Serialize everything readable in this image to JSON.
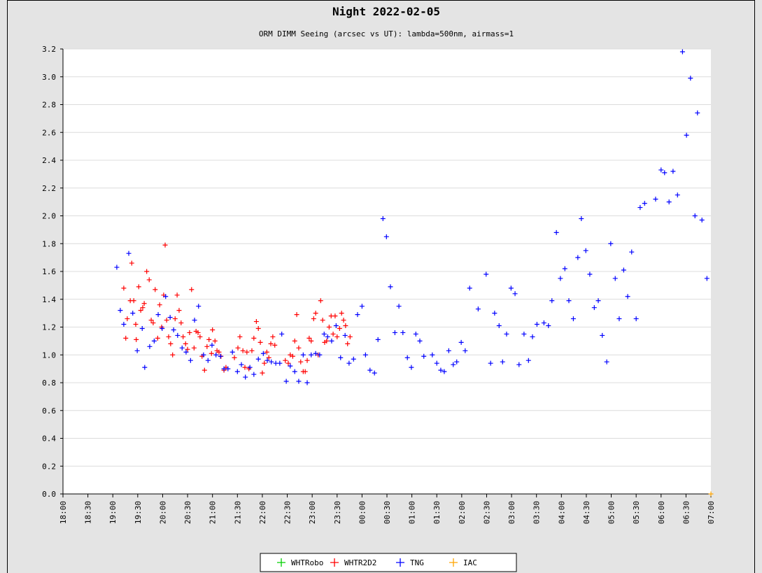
{
  "chart_data": {
    "type": "scatter",
    "title": "Night 2022-02-05",
    "subtitle": "ORM DIMM Seeing (arcsec vs UT): lambda=500nm, airmass=1",
    "xlim": [
      18,
      31
    ],
    "ylim": [
      0,
      3.2
    ],
    "xticks": [
      {
        "value": 18,
        "label": "18:00"
      },
      {
        "value": 18.5,
        "label": "18:30"
      },
      {
        "value": 19,
        "label": "19:00"
      },
      {
        "value": 19.5,
        "label": "19:30"
      },
      {
        "value": 20,
        "label": "20:00"
      },
      {
        "value": 20.5,
        "label": "20:30"
      },
      {
        "value": 21,
        "label": "21:00"
      },
      {
        "value": 21.5,
        "label": "21:30"
      },
      {
        "value": 22,
        "label": "22:00"
      },
      {
        "value": 22.5,
        "label": "22:30"
      },
      {
        "value": 23,
        "label": "23:00"
      },
      {
        "value": 23.5,
        "label": "23:30"
      },
      {
        "value": 24,
        "label": "00:00"
      },
      {
        "value": 24.5,
        "label": "00:30"
      },
      {
        "value": 25,
        "label": "01:00"
      },
      {
        "value": 25.5,
        "label": "01:30"
      },
      {
        "value": 26,
        "label": "02:00"
      },
      {
        "value": 26.5,
        "label": "02:30"
      },
      {
        "value": 27,
        "label": "03:00"
      },
      {
        "value": 27.5,
        "label": "03:30"
      },
      {
        "value": 28,
        "label": "04:00"
      },
      {
        "value": 28.5,
        "label": "04:30"
      },
      {
        "value": 29,
        "label": "05:00"
      },
      {
        "value": 29.5,
        "label": "05:30"
      },
      {
        "value": 30,
        "label": "06:00"
      },
      {
        "value": 30.5,
        "label": "06:30"
      },
      {
        "value": 31,
        "label": "07:00"
      }
    ],
    "yticks": [
      {
        "value": 0,
        "label": "0.0"
      },
      0.2,
      0.4,
      0.6,
      0.8,
      {
        "value": 1,
        "label": "1.0"
      },
      1.2,
      1.4,
      1.6,
      1.8,
      {
        "value": 2,
        "label": "2.0"
      },
      2.2,
      2.4,
      2.6,
      2.8,
      {
        "value": 3,
        "label": "3.0"
      },
      3.2
    ],
    "grid": true,
    "legend": "bottom",
    "series": [
      {
        "name": "WHTRobo",
        "color": "#00d000",
        "x": [],
        "values": []
      },
      {
        "name": "WHTR2D2",
        "color": "#ff0000",
        "x": [
          19.22,
          19.26,
          19.29,
          19.35,
          19.38,
          19.42,
          19.46,
          19.47,
          19.52,
          19.56,
          19.6,
          19.63,
          19.68,
          19.73,
          19.77,
          19.81,
          19.85,
          19.9,
          19.94,
          19.98,
          20.02,
          20.05,
          20.08,
          20.12,
          20.16,
          20.2,
          20.25,
          20.29,
          20.33,
          20.37,
          20.41,
          20.46,
          20.5,
          20.54,
          20.58,
          20.63,
          20.67,
          20.71,
          20.75,
          20.79,
          20.84,
          20.89,
          20.93,
          20.98,
          21.0,
          21.05,
          21.09,
          21.13,
          21.17,
          21.23,
          21.27,
          21.44,
          21.51,
          21.55,
          21.61,
          21.65,
          21.69,
          21.73,
          21.79,
          21.83,
          21.88,
          21.92,
          21.96,
          22.0,
          22.04,
          22.09,
          22.13,
          22.17,
          22.21,
          22.25,
          22.46,
          22.52,
          22.56,
          22.61,
          22.65,
          22.69,
          22.73,
          22.77,
          22.82,
          22.86,
          22.9,
          22.94,
          22.98,
          23.03,
          23.07,
          23.12,
          23.17,
          23.21,
          23.25,
          23.29,
          23.34,
          23.38,
          23.42,
          23.46,
          23.5,
          23.55,
          23.59,
          23.63,
          23.67,
          23.71,
          23.76
        ],
        "values": [
          1.48,
          1.12,
          1.26,
          1.39,
          1.66,
          1.39,
          1.22,
          1.11,
          1.49,
          1.32,
          1.34,
          1.37,
          1.6,
          1.54,
          1.25,
          1.23,
          1.47,
          1.12,
          1.36,
          1.2,
          1.43,
          1.79,
          1.25,
          1.13,
          1.08,
          1.0,
          1.26,
          1.43,
          1.32,
          1.23,
          1.13,
          1.08,
          1.04,
          1.16,
          1.47,
          1.05,
          1.17,
          1.16,
          1.13,
          0.99,
          0.89,
          1.06,
          1.11,
          1.01,
          1.18,
          1.1,
          1.03,
          1.02,
          0.99,
          0.89,
          0.91,
          0.98,
          1.05,
          1.13,
          1.03,
          0.91,
          1.02,
          0.9,
          1.03,
          1.12,
          1.24,
          1.19,
          1.09,
          0.87,
          0.94,
          1.02,
          0.98,
          1.08,
          1.13,
          1.07,
          0.96,
          0.94,
          1.0,
          0.99,
          1.1,
          1.29,
          1.05,
          0.95,
          0.88,
          0.88,
          0.96,
          1.12,
          1.1,
          1.26,
          1.3,
          1.0,
          1.39,
          1.25,
          1.09,
          1.1,
          1.2,
          1.28,
          1.15,
          1.28,
          1.13,
          1.19,
          1.3,
          1.25,
          1.21,
          1.08,
          1.13
        ]
      },
      {
        "name": "TNG",
        "color": "#0000ff",
        "x": [
          19.08,
          19.15,
          19.22,
          19.32,
          19.4,
          19.49,
          19.59,
          19.64,
          19.74,
          19.83,
          19.91,
          19.99,
          20.06,
          20.15,
          20.22,
          20.3,
          20.39,
          20.47,
          20.56,
          20.64,
          20.72,
          20.82,
          20.91,
          20.99,
          21.07,
          21.16,
          21.23,
          21.31,
          21.4,
          21.5,
          21.58,
          21.66,
          21.75,
          21.83,
          21.92,
          22.02,
          22.1,
          22.18,
          22.27,
          22.35,
          22.39,
          22.48,
          22.56,
          22.65,
          22.73,
          22.82,
          22.9,
          22.98,
          23.07,
          23.15,
          23.24,
          23.31,
          23.39,
          23.48,
          23.57,
          23.66,
          23.74,
          23.83,
          23.91,
          24.0,
          24.07,
          24.16,
          24.25,
          24.32,
          24.42,
          24.49,
          24.57,
          24.66,
          24.74,
          24.82,
          24.91,
          24.99,
          25.08,
          25.16,
          25.24,
          25.41,
          25.5,
          25.58,
          25.65,
          25.74,
          25.83,
          25.9,
          25.99,
          26.07,
          26.16,
          26.33,
          26.49,
          26.58,
          26.66,
          26.75,
          26.82,
          26.9,
          26.99,
          27.07,
          27.15,
          27.25,
          27.34,
          27.42,
          27.51,
          27.65,
          27.74,
          27.81,
          27.9,
          27.98,
          28.07,
          28.15,
          28.24,
          28.33,
          28.4,
          28.49,
          28.57,
          28.66,
          28.74,
          28.82,
          28.91,
          28.99,
          29.08,
          29.16,
          29.25,
          29.33,
          29.41,
          29.5,
          29.58,
          29.67,
          29.89,
          30.0,
          30.07,
          30.16,
          30.24,
          30.33,
          30.43,
          30.51,
          30.59,
          30.68,
          30.73,
          30.82,
          30.92
        ],
        "values": [
          1.63,
          1.32,
          1.22,
          1.73,
          1.3,
          1.03,
          1.19,
          0.91,
          1.06,
          1.1,
          1.29,
          1.19,
          1.42,
          1.27,
          1.18,
          1.14,
          1.05,
          1.02,
          0.96,
          1.25,
          1.35,
          1.0,
          0.96,
          1.07,
          1.0,
          0.99,
          0.9,
          0.9,
          1.02,
          0.88,
          0.93,
          0.84,
          0.91,
          0.86,
          0.97,
          1.01,
          0.96,
          0.95,
          0.94,
          0.94,
          1.15,
          0.81,
          0.92,
          0.88,
          0.81,
          1.0,
          0.8,
          1.0,
          1.01,
          1.0,
          1.15,
          1.13,
          1.1,
          1.21,
          0.98,
          1.14,
          0.94,
          0.97,
          1.29,
          1.35,
          1.0,
          0.89,
          0.87,
          1.11,
          1.98,
          1.85,
          1.49,
          1.16,
          1.35,
          1.16,
          0.98,
          0.91,
          1.15,
          1.1,
          0.99,
          1.0,
          0.94,
          0.89,
          0.88,
          1.03,
          0.93,
          0.95,
          1.09,
          1.03,
          1.48,
          1.33,
          1.58,
          0.94,
          1.3,
          1.21,
          0.95,
          1.15,
          1.48,
          1.44,
          0.93,
          1.15,
          0.96,
          1.13,
          1.22,
          1.23,
          1.21,
          1.39,
          1.88,
          1.55,
          1.62,
          1.39,
          1.26,
          1.7,
          1.98,
          1.75,
          1.58,
          1.34,
          1.39,
          1.14,
          0.95,
          1.8,
          1.55,
          1.26,
          1.61,
          1.42,
          1.74,
          1.26,
          2.06,
          2.09,
          2.12,
          2.33,
          2.31,
          2.1,
          2.32,
          2.15,
          3.18,
          2.58,
          2.99,
          2.0,
          2.74,
          1.97,
          1.55
        ]
      },
      {
        "name": "IAC",
        "color": "#ffa500",
        "x": [
          31
        ],
        "values": [
          0
        ]
      }
    ]
  }
}
